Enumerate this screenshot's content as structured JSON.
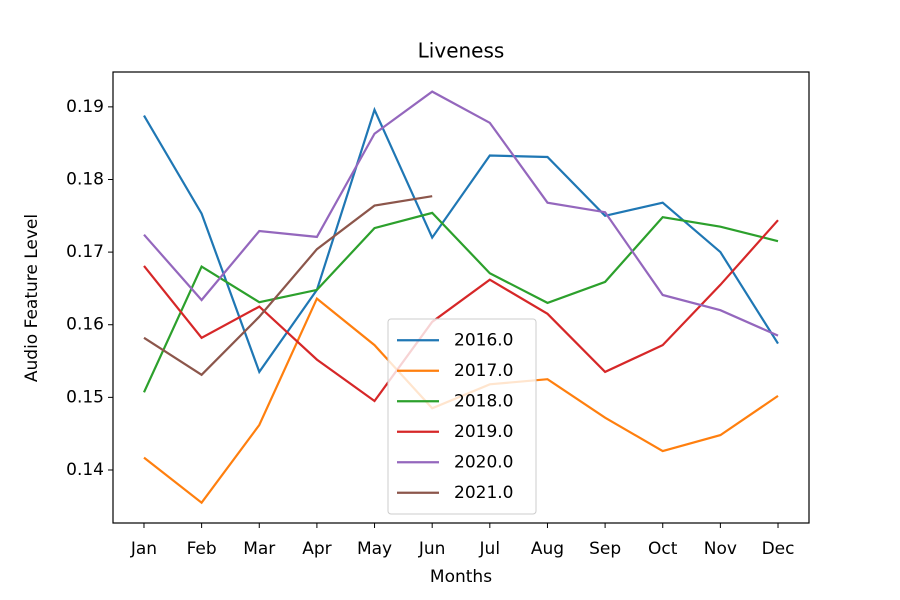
{
  "chart_data": {
    "type": "line",
    "title": "Liveness",
    "x_label": "Months",
    "y_label": "Audio Feature Level",
    "categories": [
      "Jan",
      "Feb",
      "Mar",
      "Apr",
      "May",
      "Jun",
      "Jul",
      "Aug",
      "Sep",
      "Oct",
      "Nov",
      "Dec"
    ],
    "series": [
      {
        "name": "2016.0",
        "color": "#1f77b4",
        "values": [
          0.1888,
          0.1753,
          0.1535,
          0.1648,
          0.1896,
          0.172,
          0.1833,
          0.1831,
          0.175,
          0.1768,
          0.17,
          0.1574
        ]
      },
      {
        "name": "2017.0",
        "color": "#ff7f0e",
        "values": [
          0.1417,
          0.1355,
          0.1462,
          0.1636,
          0.1572,
          0.1485,
          0.1518,
          0.1525,
          0.1472,
          0.1426,
          0.1448,
          0.1502
        ]
      },
      {
        "name": "2018.0",
        "color": "#2ca02c",
        "values": [
          0.1507,
          0.168,
          0.1631,
          0.1648,
          0.1733,
          0.1754,
          0.1671,
          0.163,
          0.1659,
          0.1748,
          0.1735,
          0.1715
        ]
      },
      {
        "name": "2019.0",
        "color": "#d62728",
        "values": [
          0.1681,
          0.1582,
          0.1625,
          0.1552,
          0.1495,
          0.1604,
          0.1662,
          0.1615,
          0.1535,
          0.1572,
          0.1655,
          0.1744
        ]
      },
      {
        "name": "2020.0",
        "color": "#9467bd",
        "values": [
          0.1724,
          0.1634,
          0.1729,
          0.1721,
          0.1863,
          0.1921,
          0.1878,
          0.1768,
          0.1755,
          0.1641,
          0.162,
          0.1585
        ]
      },
      {
        "name": "2021.0",
        "color": "#8c564b",
        "values": [
          0.1582,
          0.1531,
          0.1611,
          0.1704,
          0.1764,
          0.1777,
          null,
          null,
          null,
          null,
          null,
          null
        ]
      }
    ],
    "ylim": [
      0.1327,
      0.1948
    ],
    "yticks": [
      0.14,
      0.15,
      0.16,
      0.17,
      0.18,
      0.19
    ],
    "grid": false,
    "legend": "lower center"
  }
}
